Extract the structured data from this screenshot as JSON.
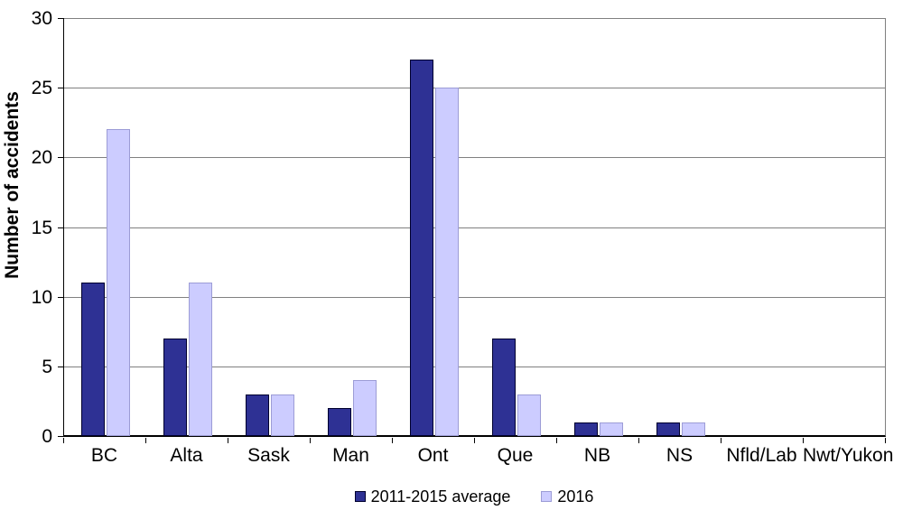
{
  "chart_data": {
    "type": "bar",
    "title": "",
    "xlabel": "",
    "ylabel": "Number of accidents",
    "ylim": [
      0,
      30
    ],
    "ytick_step": 5,
    "grid": true,
    "legend_position": "bottom",
    "categories": [
      "BC",
      "Alta",
      "Sask",
      "Man",
      "Ont",
      "Que",
      "NB",
      "NS",
      "Nfld/Lab",
      "Nwt/Yukon"
    ],
    "series": [
      {
        "name": "2011-2015 average",
        "color": "#2E3194",
        "border_color": "#00002E",
        "values": [
          11,
          7,
          3,
          2,
          27,
          7,
          1,
          1,
          0,
          0
        ]
      },
      {
        "name": "2016",
        "color": "#CCCCFF",
        "border_color": "#9C9CD6",
        "values": [
          22,
          11,
          3,
          4,
          25,
          3,
          1,
          1,
          0,
          0
        ]
      }
    ],
    "colors": {
      "gridline": "#808080",
      "axis": "#000000",
      "background": "#FFFFFF",
      "text": "#000000"
    }
  }
}
